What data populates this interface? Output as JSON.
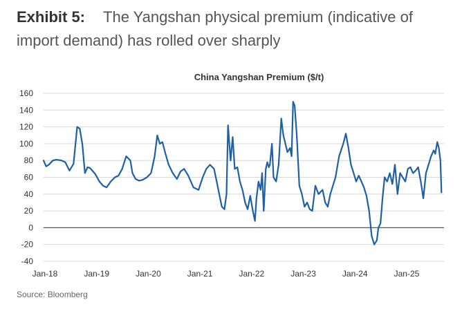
{
  "exhibit": {
    "label": "Exhibit 5:",
    "title": "The Yangshan physical premium (indicative of import demand) has rolled over sharply"
  },
  "source": "Source: Bloomberg",
  "colors": {
    "line": "#1f5fa6",
    "grid": "#d9d9d9",
    "zero": "#555555",
    "text": "#333333"
  },
  "chart_data": {
    "type": "line",
    "title": "China Yangshan Premium ($/t)",
    "xlabel": "",
    "ylabel": "",
    "ylim": [
      -40,
      160
    ],
    "yticks": [
      -40,
      -20,
      0,
      20,
      40,
      60,
      80,
      100,
      120,
      140,
      160
    ],
    "xlim": [
      2018.0,
      2025.75
    ],
    "xticks": [
      {
        "value": 2018,
        "label": "Jan-18"
      },
      {
        "value": 2019,
        "label": "Jan-19"
      },
      {
        "value": 2020,
        "label": "Jan-20"
      },
      {
        "value": 2021,
        "label": "Jan-21"
      },
      {
        "value": 2022,
        "label": "Jan-22"
      },
      {
        "value": 2023,
        "label": "Jan-23"
      },
      {
        "value": 2024,
        "label": "Jan-24"
      },
      {
        "value": 2025,
        "label": "Jan-25"
      }
    ],
    "grid": true,
    "series": [
      {
        "name": "China Yangshan Premium",
        "x": [
          2018.0,
          2018.05,
          2018.1,
          2018.18,
          2018.25,
          2018.35,
          2018.42,
          2018.5,
          2018.58,
          2018.65,
          2018.7,
          2018.75,
          2018.8,
          2018.85,
          2018.9,
          2019.0,
          2019.08,
          2019.15,
          2019.22,
          2019.3,
          2019.38,
          2019.45,
          2019.52,
          2019.6,
          2019.68,
          2019.72,
          2019.78,
          2019.85,
          2019.92,
          2020.0,
          2020.08,
          2020.15,
          2020.2,
          2020.25,
          2020.3,
          2020.35,
          2020.42,
          2020.5,
          2020.58,
          2020.65,
          2020.72,
          2020.8,
          2020.9,
          2021.0,
          2021.08,
          2021.15,
          2021.22,
          2021.3,
          2021.35,
          2021.4,
          2021.45,
          2021.5,
          2021.54,
          2021.57,
          2021.62,
          2021.66,
          2021.7,
          2021.75,
          2021.8,
          2021.85,
          2021.9,
          2021.95,
          2022.0,
          2022.05,
          2022.09,
          2022.12,
          2022.16,
          2022.2,
          2022.23,
          2022.26,
          2022.3,
          2022.33,
          2022.36,
          2022.38,
          2022.42,
          2022.45,
          2022.5,
          2022.55,
          2022.6,
          2022.64,
          2022.68,
          2022.72,
          2022.77,
          2022.8,
          2022.83,
          2022.86,
          2022.9,
          2022.95,
          2023.0,
          2023.05,
          2023.1,
          2023.15,
          2023.2,
          2023.26,
          2023.32,
          2023.4,
          2023.45,
          2023.5,
          2023.55,
          2023.6,
          2023.65,
          2023.72,
          2023.8,
          2023.85,
          2023.9,
          2023.95,
          2024.0,
          2024.05,
          2024.1,
          2024.15,
          2024.2,
          2024.25,
          2024.3,
          2024.35,
          2024.4,
          2024.45,
          2024.48,
          2024.52,
          2024.56,
          2024.6,
          2024.65,
          2024.7,
          2024.75,
          2024.8,
          2024.85,
          2024.9,
          2024.95,
          2025.0,
          2025.05,
          2025.1,
          2025.15,
          2025.2,
          2025.25,
          2025.3,
          2025.35,
          2025.4,
          2025.45,
          2025.5,
          2025.55,
          2025.58,
          2025.62,
          2025.65,
          2025.68,
          2025.7
        ],
        "values": [
          80,
          73,
          75,
          80,
          81,
          80,
          78,
          68,
          76,
          120,
          118,
          100,
          65,
          72,
          71,
          64,
          55,
          50,
          48,
          55,
          60,
          62,
          70,
          85,
          80,
          65,
          58,
          56,
          57,
          60,
          65,
          85,
          110,
          100,
          102,
          90,
          75,
          65,
          58,
          67,
          70,
          62,
          48,
          45,
          60,
          70,
          75,
          70,
          55,
          40,
          25,
          22,
          40,
          122,
          80,
          108,
          70,
          72,
          55,
          45,
          30,
          22,
          38,
          20,
          8,
          35,
          55,
          45,
          65,
          20,
          70,
          78,
          72,
          75,
          100,
          60,
          55,
          75,
          130,
          110,
          100,
          90,
          95,
          85,
          150,
          145,
          110,
          50,
          40,
          25,
          30,
          22,
          20,
          50,
          40,
          45,
          30,
          25,
          40,
          50,
          60,
          85,
          100,
          112,
          95,
          75,
          65,
          55,
          62,
          55,
          48,
          38,
          20,
          -10,
          -20,
          -15,
          0,
          5,
          35,
          60,
          55,
          65,
          52,
          75,
          40,
          65,
          60,
          55,
          70,
          72,
          65,
          68,
          72,
          55,
          35,
          65,
          75,
          85,
          92,
          88,
          102,
          95,
          80,
          42
        ]
      }
    ]
  }
}
